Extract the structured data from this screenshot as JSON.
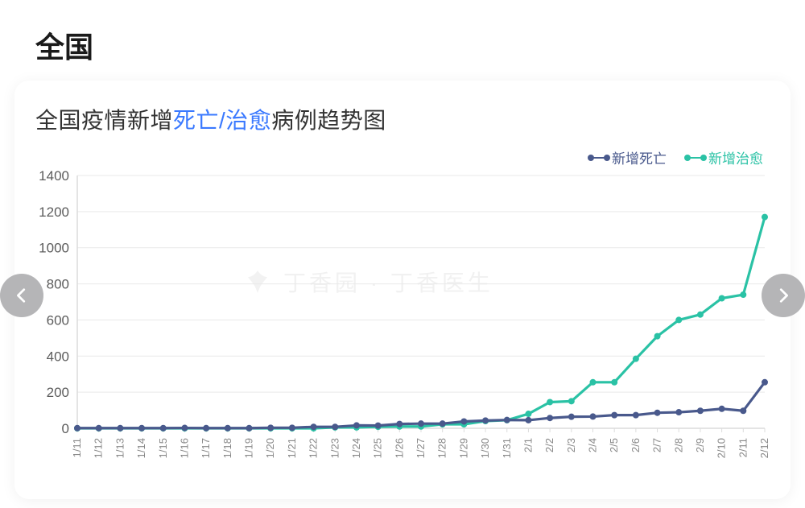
{
  "page": {
    "title": "全国"
  },
  "chart": {
    "type": "line",
    "title_parts": {
      "prefix": "全国疫情新增",
      "highlight": "死亡/治愈",
      "suffix": "病例趋势图"
    },
    "title_fontsize": 28,
    "title_color": "#333333",
    "highlight_color": "#3a79ff",
    "background_color": "#ffffff",
    "grid_color": "#e9e9e9",
    "axis_color": "#dcdcdc",
    "tick_font_color": "#5c5c5c",
    "xtick_font_color": "#888888",
    "ylim": [
      0,
      1400
    ],
    "ytick_step": 200,
    "yticks": [
      0,
      200,
      400,
      600,
      800,
      1000,
      1200,
      1400
    ],
    "line_width": 3.2,
    "marker_radius": 4,
    "x_labels": [
      "1/11",
      "1/12",
      "1/13",
      "1/14",
      "1/15",
      "1/16",
      "1/17",
      "1/18",
      "1/19",
      "1/20",
      "1/21",
      "1/22",
      "1/23",
      "1/24",
      "1/25",
      "1/26",
      "1/27",
      "1/28",
      "1/29",
      "1/30",
      "1/31",
      "2/1",
      "2/2",
      "2/3",
      "2/4",
      "2/5",
      "2/6",
      "2/7",
      "2/8",
      "2/9",
      "2/10",
      "2/11",
      "2/12"
    ],
    "legend": [
      {
        "label": "新增死亡",
        "color": "#49598c"
      },
      {
        "label": "新增治愈",
        "color": "#2ac2a5"
      }
    ],
    "series": [
      {
        "name": "新增治愈",
        "color": "#2ac2a5",
        "values": [
          0,
          0,
          0,
          0,
          0,
          0,
          0,
          0,
          0,
          0,
          0,
          0,
          5,
          5,
          8,
          10,
          10,
          22,
          22,
          40,
          45,
          80,
          145,
          150,
          255,
          255,
          385,
          510,
          600,
          630,
          720,
          740,
          1170
        ]
      },
      {
        "name": "新增死亡",
        "color": "#49598c",
        "values": [
          1,
          1,
          1,
          1,
          1,
          2,
          1,
          1,
          1,
          3,
          3,
          8,
          8,
          16,
          15,
          24,
          26,
          26,
          38,
          43,
          46,
          45,
          57,
          64,
          65,
          73,
          73,
          86,
          89,
          97,
          108,
          97,
          255
        ]
      }
    ],
    "watermark": "丁香园 · 丁香医生"
  },
  "nav": {
    "prev": "上一张",
    "next": "下一张"
  }
}
